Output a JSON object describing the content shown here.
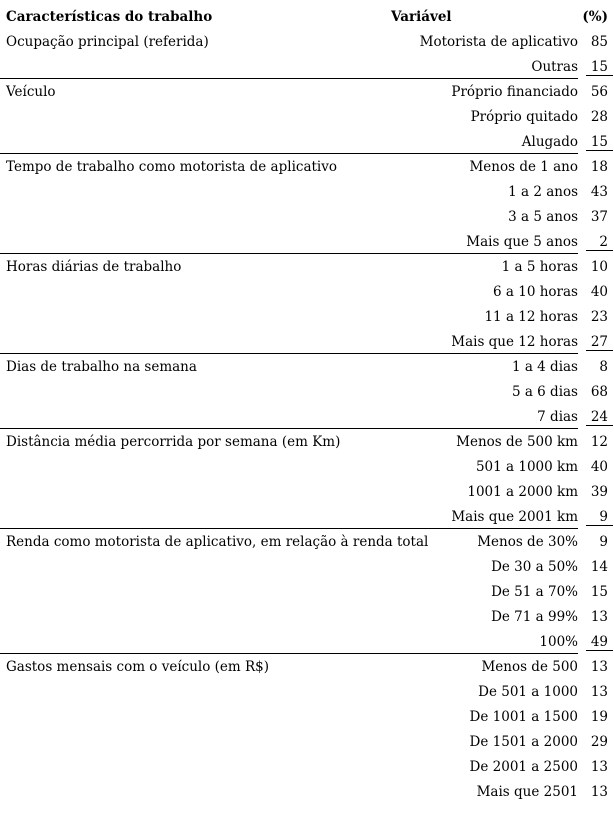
{
  "colors": {
    "text": "#000000",
    "rule": "#000000",
    "background": "#ffffff"
  },
  "header": {
    "characteristics": "Características do trabalho",
    "variable": "Variável",
    "percent": "(%)"
  },
  "table": {
    "groups": [
      {
        "label": "Ocupação principal (referida)",
        "rows": [
          {
            "variable": "Motorista de aplicativo",
            "pct": "85"
          },
          {
            "variable": "Outras",
            "pct": "15"
          }
        ]
      },
      {
        "label": "Veículo",
        "rows": [
          {
            "variable": "Próprio financiado",
            "pct": "56"
          },
          {
            "variable": "Próprio quitado",
            "pct": "28"
          },
          {
            "variable": "Alugado",
            "pct": "15"
          }
        ]
      },
      {
        "label": "Tempo de trabalho como motorista de aplicativo",
        "rows": [
          {
            "variable": "Menos de 1 ano",
            "pct": "18"
          },
          {
            "variable": "1 a 2 anos",
            "pct": "43"
          },
          {
            "variable": "3 a 5 anos",
            "pct": "37"
          },
          {
            "variable": "Mais que 5 anos",
            "pct": "2"
          }
        ]
      },
      {
        "label": "Horas diárias de trabalho",
        "rows": [
          {
            "variable": "1 a 5 horas",
            "pct": "10"
          },
          {
            "variable": "6 a 10 horas",
            "pct": "40"
          },
          {
            "variable": "11 a 12 horas",
            "pct": "23"
          },
          {
            "variable": "Mais que 12 horas",
            "pct": "27"
          }
        ]
      },
      {
        "label": "Dias de trabalho na semana",
        "rows": [
          {
            "variable": "1 a 4 dias",
            "pct": "8"
          },
          {
            "variable": "5 a 6 dias",
            "pct": "68"
          },
          {
            "variable": "7 dias",
            "pct": "24"
          }
        ]
      },
      {
        "label": "Distância média percorrida por semana (em Km)",
        "rows": [
          {
            "variable": "Menos de 500 km",
            "pct": "12"
          },
          {
            "variable": "501 a 1000 km",
            "pct": "40"
          },
          {
            "variable": "1001 a 2000 km",
            "pct": "39"
          },
          {
            "variable": "Mais que 2001 km",
            "pct": "9"
          }
        ]
      },
      {
        "label": "Renda como motorista de aplicativo, em relação à renda total",
        "rows": [
          {
            "variable": "Menos de 30%",
            "pct": "9"
          },
          {
            "variable": "De 30 a 50%",
            "pct": "14"
          },
          {
            "variable": "De 51 a 70%",
            "pct": "15"
          },
          {
            "variable": "De 71 a 99%",
            "pct": "13"
          },
          {
            "variable": "100%",
            "pct": "49"
          }
        ]
      },
      {
        "label": "Gastos mensais com o veículo (em R$)",
        "rows": [
          {
            "variable": "Menos de 500",
            "pct": "13"
          },
          {
            "variable": "De 501 a 1000",
            "pct": "13"
          },
          {
            "variable": "De 1001 a 1500",
            "pct": "19"
          },
          {
            "variable": "De 1501 a 2000",
            "pct": "29"
          },
          {
            "variable": "De 2001 a 2500",
            "pct": "13"
          },
          {
            "variable": "Mais que 2501",
            "pct": "13"
          }
        ]
      }
    ]
  }
}
